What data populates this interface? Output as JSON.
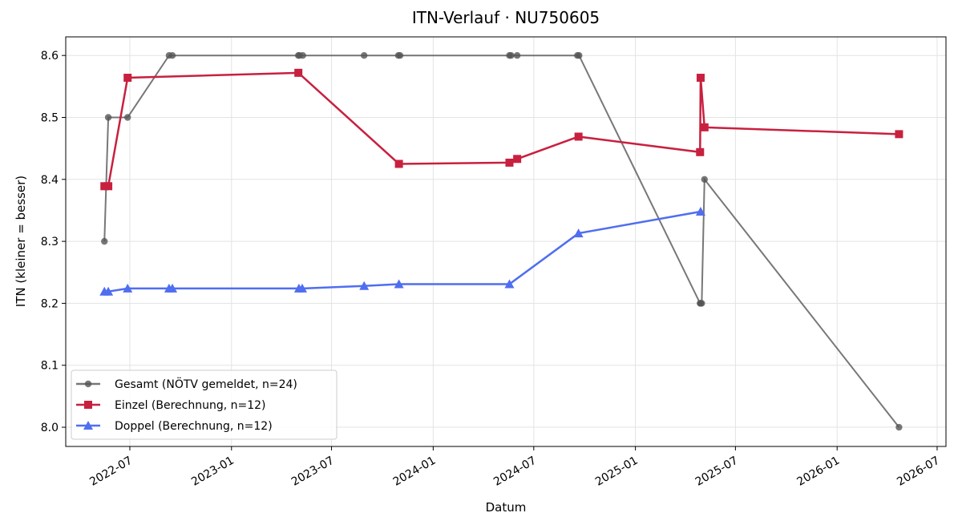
{
  "chart_data": {
    "type": "line",
    "title": "ITN-Verlauf · NU750605",
    "xlabel": "Datum",
    "ylabel": "ITN  (kleiner = besser)",
    "xlim": [
      "2022-03-07",
      "2026-07-17"
    ],
    "xticks": [
      "2022-07",
      "2023-01",
      "2023-07",
      "2024-01",
      "2024-07",
      "2025-01",
      "2025-07",
      "2026-01",
      "2026-07"
    ],
    "ylim": [
      7.969,
      8.63
    ],
    "yticks": [
      {
        "value": 8,
        "label": "8.0"
      },
      8.1,
      8.2,
      8.3,
      8.4,
      8.5,
      8.6
    ],
    "grid": true,
    "legend": "lower left",
    "series": [
      {
        "name": "Gesamt (NÖTV gemeldet, n=24)",
        "color": "#555555",
        "marker": "circle",
        "x": [
          "2022-05-16",
          "2022-05-23",
          "2022-06-27",
          "2022-09-10",
          "2022-09-16",
          "2023-05-02",
          "2023-05-04",
          "2023-05-10",
          "2023-08-29",
          "2023-10-30",
          "2023-11-02",
          "2024-05-18",
          "2024-05-21",
          "2024-06-01",
          "2024-09-18",
          "2024-09-21",
          "2025-04-28",
          "2025-04-29",
          "2025-05-01",
          "2025-05-06",
          "2026-04-23"
        ],
        "values": [
          8.3,
          8.5,
          8.5,
          8.6,
          8.6,
          8.6,
          8.6,
          8.6,
          8.6,
          8.6,
          8.6,
          8.6,
          8.6,
          8.6,
          8.6,
          8.6,
          8.2,
          8.2,
          8.2,
          8.4,
          8.0
        ]
      },
      {
        "name": "Einzel (Berechnung, n=12)",
        "color": "#c8203f",
        "marker": "square",
        "x": [
          "2022-05-16",
          "2022-05-23",
          "2022-06-27",
          "2023-05-02",
          "2023-10-31",
          "2024-05-18",
          "2024-06-01",
          "2024-09-20",
          "2025-04-28",
          "2025-04-29",
          "2025-05-06",
          "2026-04-23"
        ],
        "values": [
          8.389,
          8.389,
          8.564,
          8.572,
          8.425,
          8.427,
          8.433,
          8.469,
          8.444,
          8.564,
          8.484,
          8.473
        ]
      },
      {
        "name": "Doppel (Berechnung, n=12)",
        "color": "#4f6ef0",
        "marker": "triangle",
        "x": [
          "2022-05-16",
          "2022-05-23",
          "2022-06-27",
          "2022-09-10",
          "2022-09-16",
          "2023-05-03",
          "2023-05-09",
          "2023-08-29",
          "2023-10-31",
          "2024-05-18",
          "2024-09-20",
          "2025-04-29"
        ],
        "values": [
          8.219,
          8.219,
          8.224,
          8.224,
          8.224,
          8.224,
          8.224,
          8.228,
          8.231,
          8.231,
          8.313,
          8.348
        ]
      }
    ]
  }
}
